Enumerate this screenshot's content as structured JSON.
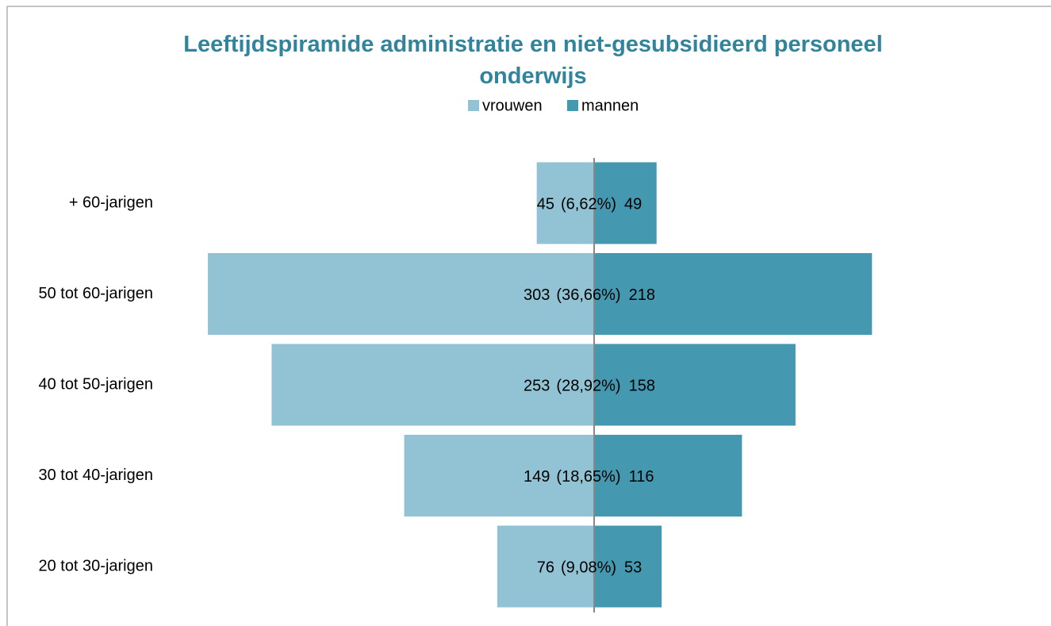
{
  "chart_data": {
    "type": "pyramid",
    "title": "Leeftijdspiramide administratie en niet-gesubsidieerd personeel onderwijs",
    "categories": [
      "+ 60-jarigen",
      "50 tot 60-jarigen",
      "40 tot 50-jarigen",
      "30 tot 40-jarigen",
      "20 tot 30-jarigen"
    ],
    "series": [
      {
        "name": "vrouwen",
        "color": "#92c3d4",
        "values": [
          45,
          303,
          253,
          149,
          76
        ]
      },
      {
        "name": "mannen",
        "color": "#4499b0",
        "values": [
          49,
          218,
          158,
          116,
          53
        ]
      }
    ],
    "share_labels": [
      "(6,62%)",
      "(36,66%)",
      "(28,92%)",
      "(18,65%)",
      "(9,08%)"
    ],
    "legend": "top"
  }
}
